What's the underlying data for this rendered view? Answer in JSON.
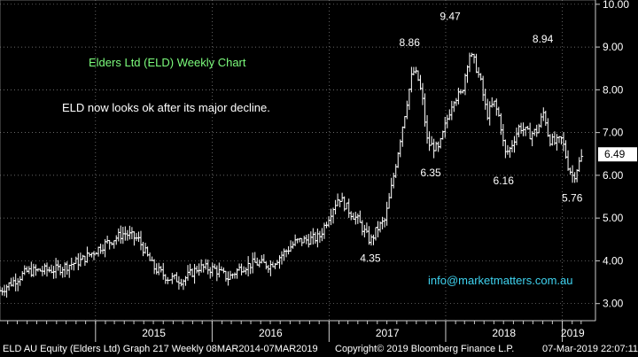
{
  "chart_data": {
    "type": "ohlc",
    "title": "Elders Ltd (ELD) Weekly Chart",
    "subtitle": "ELD now looks ok after its major decline.",
    "contact": "info@marketmatters.com.au",
    "ylim": [
      2.6,
      10.1
    ],
    "yticks": [
      "3.00",
      "4.00",
      "5.00",
      "6.00",
      "7.00",
      "8.00",
      "9.00",
      "10.00"
    ],
    "x_years": [
      "2015",
      "2016",
      "2017",
      "2018",
      "2019"
    ],
    "last_price": "6.49",
    "annotations": [
      {
        "text": "9.47",
        "value": 9.47
      },
      {
        "text": "8.86",
        "value": 8.86
      },
      {
        "text": "8.94",
        "value": 8.94
      },
      {
        "text": "6.35",
        "value": 6.35
      },
      {
        "text": "6.16",
        "value": 6.16
      },
      {
        "text": "5.76",
        "value": 5.76
      },
      {
        "text": "4.35",
        "value": 4.35
      }
    ],
    "close_path": [
      [
        "2014-03-08",
        3.3
      ],
      [
        "2014-06-01",
        3.75
      ],
      [
        "2014-09-01",
        3.8
      ],
      [
        "2014-11-15",
        4.0
      ],
      [
        "2015-02-01",
        4.4
      ],
      [
        "2015-04-01",
        4.65
      ],
      [
        "2015-05-15",
        4.5
      ],
      [
        "2015-07-01",
        3.85
      ],
      [
        "2015-08-15",
        3.6
      ],
      [
        "2015-10-01",
        3.55
      ],
      [
        "2015-11-20",
        3.85
      ],
      [
        "2016-01-10",
        3.8
      ],
      [
        "2016-02-20",
        3.6
      ],
      [
        "2016-04-01",
        3.85
      ],
      [
        "2016-05-15",
        3.95
      ],
      [
        "2016-07-01",
        3.9
      ],
      [
        "2016-08-15",
        4.2
      ],
      [
        "2016-09-20",
        4.45
      ],
      [
        "2016-11-01",
        4.5
      ],
      [
        "2016-12-01",
        4.55
      ],
      [
        "2017-01-10",
        5.2
      ],
      [
        "2017-02-01",
        5.5
      ],
      [
        "2017-03-01",
        5.2
      ],
      [
        "2017-04-01",
        4.95
      ],
      [
        "2017-04-28",
        4.6
      ],
      [
        "2017-05-10",
        4.45
      ],
      [
        "2017-06-01",
        4.75
      ],
      [
        "2017-06-25",
        4.95
      ],
      [
        "2017-07-15",
        5.7
      ],
      [
        "2017-08-01",
        6.4
      ],
      [
        "2017-08-20",
        7.2
      ],
      [
        "2017-09-05",
        7.85
      ],
      [
        "2017-09-20",
        8.45
      ],
      [
        "2017-10-05",
        8.3
      ],
      [
        "2017-10-20",
        7.8
      ],
      [
        "2017-11-05",
        6.75
      ],
      [
        "2017-12-10",
        6.6
      ],
      [
        "2018-01-01",
        7.2
      ],
      [
        "2018-01-25",
        7.8
      ],
      [
        "2018-02-20",
        7.9
      ],
      [
        "2018-03-15",
        8.85
      ],
      [
        "2018-04-01",
        8.65
      ],
      [
        "2018-04-20",
        8.2
      ],
      [
        "2018-05-10",
        7.4
      ],
      [
        "2018-06-01",
        7.7
      ],
      [
        "2018-06-20",
        7.3
      ],
      [
        "2018-07-05",
        6.5
      ],
      [
        "2018-07-20",
        6.6
      ],
      [
        "2018-08-20",
        7.15
      ],
      [
        "2018-09-20",
        6.95
      ],
      [
        "2018-10-15",
        7.05
      ],
      [
        "2018-11-05",
        7.5
      ],
      [
        "2018-11-20",
        6.85
      ],
      [
        "2018-12-10",
        6.75
      ],
      [
        "2018-12-31",
        6.85
      ],
      [
        "2019-01-20",
        6.2
      ],
      [
        "2019-02-05",
        5.95
      ],
      [
        "2019-02-20",
        6.25
      ],
      [
        "2019-03-07",
        6.49
      ]
    ]
  },
  "footer": {
    "left": "ELD AU Equity (Elders Ltd) Graph 217  Weekly 08MAR2014-07MAR2019",
    "center": "Copyright© 2019 Bloomberg Finance L.P.",
    "right": "07-Mar-2019 22:07:11"
  },
  "colors": {
    "background": "#000000",
    "bars": "#ffffff",
    "title": "#7CFC7C",
    "contact": "#3fd3f0",
    "grid": "#8a8a8a"
  }
}
